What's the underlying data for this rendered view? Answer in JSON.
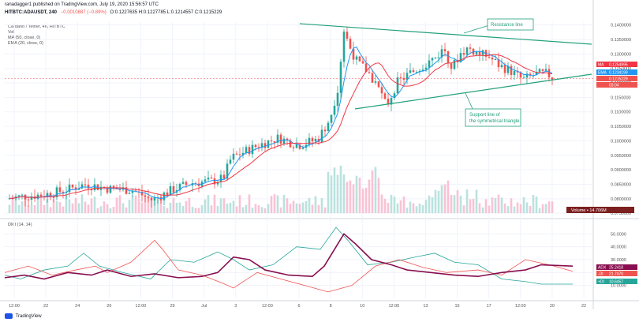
{
  "header": {
    "publish_line": "ranadagger1 published on TradingView.com, July 19, 2020 15:56:57 UTC",
    "symbol_line_prefix": "HITBTC:ADAUSDT, 240",
    "change": "−0.0010887 (−0.89%)",
    "ohlc": "O:0.1227635 H:0.1227785 L:0.1214557 C:0.1215229",
    "title": "Cardano / Tether, 4h, HITBTC",
    "indicators": [
      "Vol",
      "MA (50, close, 0)",
      "EMA (20, close, 0)"
    ],
    "dmi_label": "DMI (14, 14)"
  },
  "price_axis": {
    "ticks": [
      "0.1400000",
      "0.1350000",
      "0.1300000",
      "0.1250000",
      "0.1200000",
      "0.1150000",
      "0.1100000",
      "0.1050000",
      "0.1000000",
      "0.0950000",
      "0.0900000",
      "0.0850000",
      "0.0800000",
      "0.0750000"
    ],
    "tags": [
      {
        "label": "MA",
        "value": "0.1254995",
        "color": "#f23645"
      },
      {
        "label": "EMA",
        "value": "0.1234199",
        "color": "#2196f3"
      },
      {
        "label": "",
        "value": "0.1215229",
        "color": "#ef5350"
      },
      {
        "label": "",
        "value": "03:04",
        "color": "#ef5350"
      }
    ],
    "volume_tag": "Volume • 14.706M"
  },
  "dmi_axis": {
    "ticks": [
      "50.0000",
      "40.0000",
      "30.0000",
      "20.0000",
      "10.0000"
    ],
    "tags": [
      {
        "label": "ADX",
        "value": "25.2418",
        "color": "#880e4f"
      },
      {
        "label": "-DI",
        "value": "21.7470",
        "color": "#ef5350"
      },
      {
        "label": "+DI",
        "value": "10.6457",
        "color": "#26a69a"
      }
    ]
  },
  "time_axis": [
    "12:00",
    "22",
    "24",
    "26",
    "12:00",
    "29",
    "Jul",
    "3",
    "12:00",
    "6",
    "8",
    "10",
    "12:00",
    "13",
    "15",
    "17",
    "12:00",
    "20",
    "22"
  ],
  "annotations": {
    "resistance": "Resistance line",
    "support": "Support line of the symmetrical triangle"
  },
  "colors": {
    "up": "#26a69a",
    "down": "#ef5350",
    "ma": "#f23645",
    "ema": "#2196f3",
    "trendline": "#22a07a",
    "adx": "#880e4f",
    "minus_di": "#ef5350",
    "plus_di": "#26a69a"
  },
  "footer": {
    "brand": "TradingView"
  }
}
